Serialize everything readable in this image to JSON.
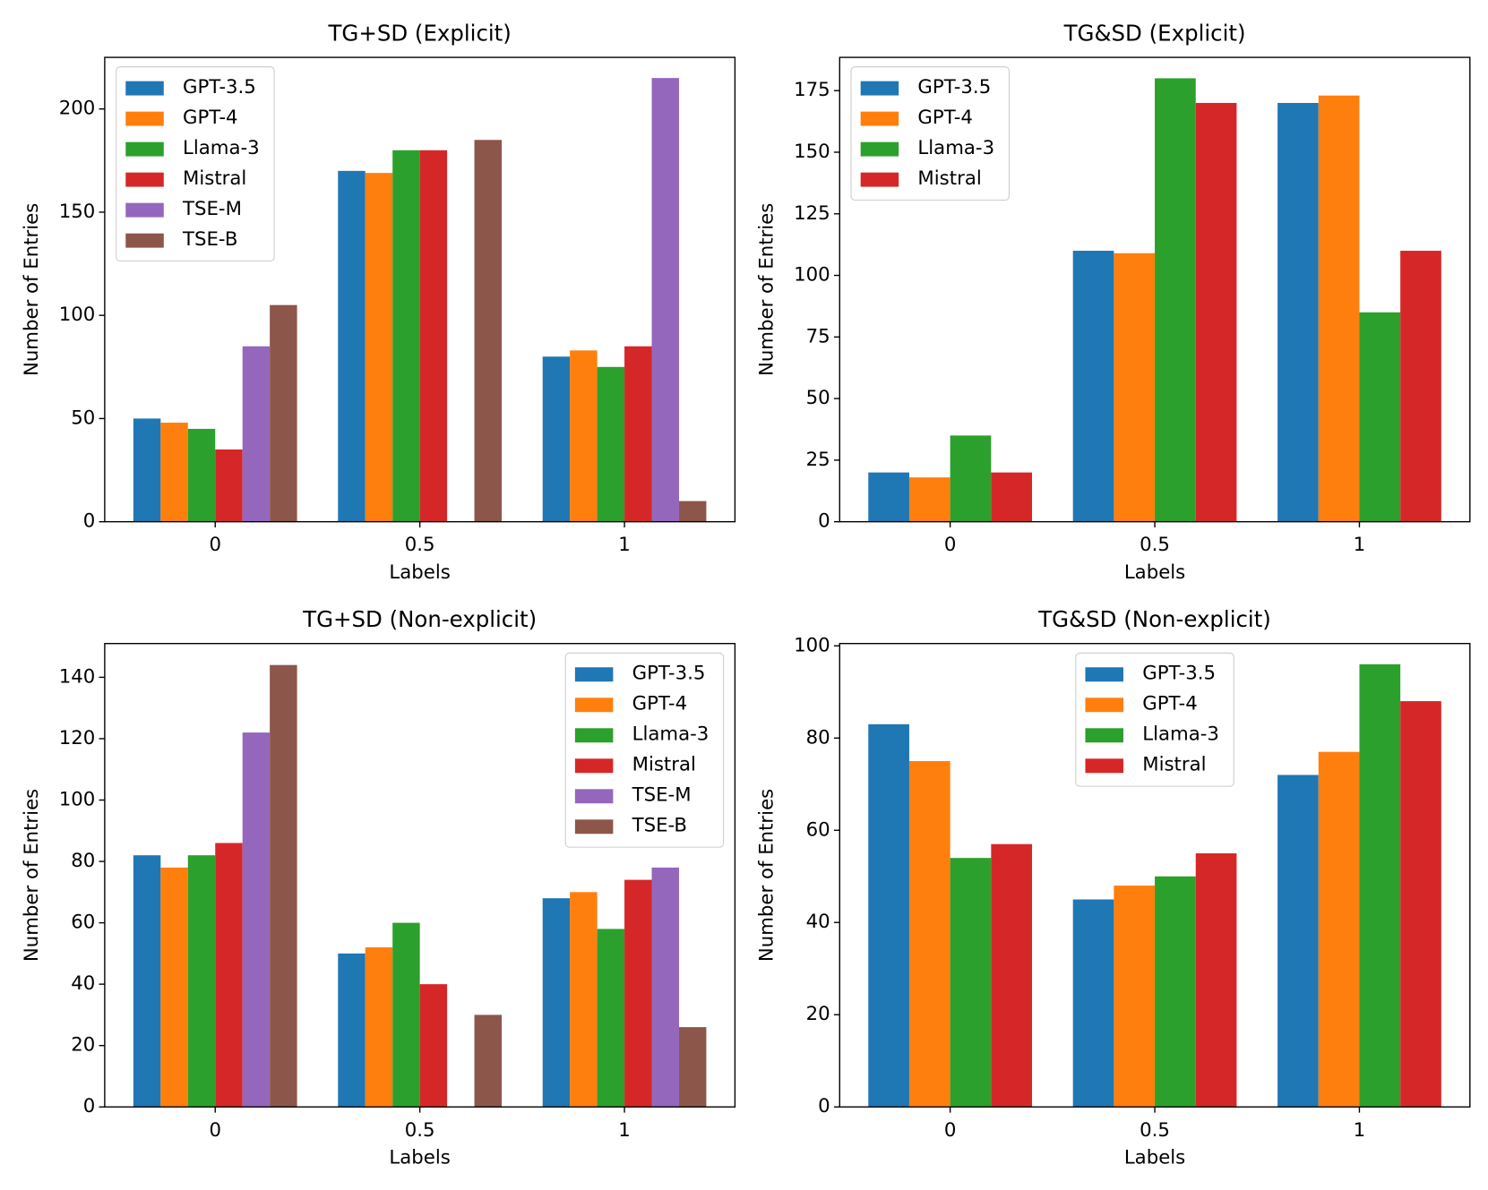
{
  "chart_data": [
    {
      "type": "bar",
      "title": "TG+SD (Explicit)",
      "xlabel": "Labels",
      "ylabel": "Number of Entries",
      "categories": [
        "0",
        "0.5",
        "1"
      ],
      "ylim": [
        0,
        225
      ],
      "yticks": [
        0,
        50,
        100,
        150,
        200
      ],
      "legend": "upper left",
      "series": [
        {
          "name": "GPT-3.5",
          "color": "#1f77b4",
          "values": [
            50,
            170,
            80
          ]
        },
        {
          "name": "GPT-4",
          "color": "#ff7f0e",
          "values": [
            48,
            169,
            83
          ]
        },
        {
          "name": "Llama-3",
          "color": "#2ca02c",
          "values": [
            45,
            180,
            75
          ]
        },
        {
          "name": "Mistral",
          "color": "#d62728",
          "values": [
            35,
            180,
            85
          ]
        },
        {
          "name": "TSE-M",
          "color": "#9467bd",
          "values": [
            85,
            0,
            215
          ]
        },
        {
          "name": "TSE-B",
          "color": "#8c564b",
          "values": [
            105,
            185,
            10
          ]
        }
      ]
    },
    {
      "type": "bar",
      "title": "TG&SD (Explicit)",
      "xlabel": "Labels",
      "ylabel": "Number of Entries",
      "categories": [
        "0",
        "0.5",
        "1"
      ],
      "ylim": [
        0,
        188.5
      ],
      "yticks": [
        0,
        25,
        50,
        75,
        100,
        125,
        150,
        175
      ],
      "legend": "upper left",
      "series": [
        {
          "name": "GPT-3.5",
          "color": "#1f77b4",
          "values": [
            20,
            110,
            170
          ]
        },
        {
          "name": "GPT-4",
          "color": "#ff7f0e",
          "values": [
            18,
            109,
            173
          ]
        },
        {
          "name": "Llama-3",
          "color": "#2ca02c",
          "values": [
            35,
            180,
            85
          ]
        },
        {
          "name": "Mistral",
          "color": "#d62728",
          "values": [
            20,
            170,
            110
          ]
        }
      ]
    },
    {
      "type": "bar",
      "title": "TG+SD (Non-explicit)",
      "xlabel": "Labels",
      "ylabel": "Number of Entries",
      "categories": [
        "0",
        "0.5",
        "1"
      ],
      "ylim": [
        0,
        151
      ],
      "yticks": [
        0,
        20,
        40,
        60,
        80,
        100,
        120,
        140
      ],
      "legend": "upper right",
      "series": [
        {
          "name": "GPT-3.5",
          "color": "#1f77b4",
          "values": [
            82,
            50,
            68
          ]
        },
        {
          "name": "GPT-4",
          "color": "#ff7f0e",
          "values": [
            78,
            52,
            70
          ]
        },
        {
          "name": "Llama-3",
          "color": "#2ca02c",
          "values": [
            82,
            60,
            58
          ]
        },
        {
          "name": "Mistral",
          "color": "#d62728",
          "values": [
            86,
            40,
            74
          ]
        },
        {
          "name": "TSE-M",
          "color": "#9467bd",
          "values": [
            122,
            0,
            78
          ]
        },
        {
          "name": "TSE-B",
          "color": "#8c564b",
          "values": [
            144,
            30,
            26
          ]
        }
      ]
    },
    {
      "type": "bar",
      "title": "TG&SD (Non-explicit)",
      "xlabel": "Labels",
      "ylabel": "Number of Entries",
      "categories": [
        "0",
        "0.5",
        "1"
      ],
      "ylim": [
        0,
        100.5
      ],
      "yticks": [
        0,
        20,
        40,
        60,
        80,
        100
      ],
      "legend": "upper center",
      "series": [
        {
          "name": "GPT-3.5",
          "color": "#1f77b4",
          "values": [
            83,
            45,
            72
          ]
        },
        {
          "name": "GPT-4",
          "color": "#ff7f0e",
          "values": [
            75,
            48,
            77
          ]
        },
        {
          "name": "Llama-3",
          "color": "#2ca02c",
          "values": [
            54,
            50,
            96
          ]
        },
        {
          "name": "Mistral",
          "color": "#d62728",
          "values": [
            57,
            55,
            88
          ]
        }
      ]
    }
  ]
}
